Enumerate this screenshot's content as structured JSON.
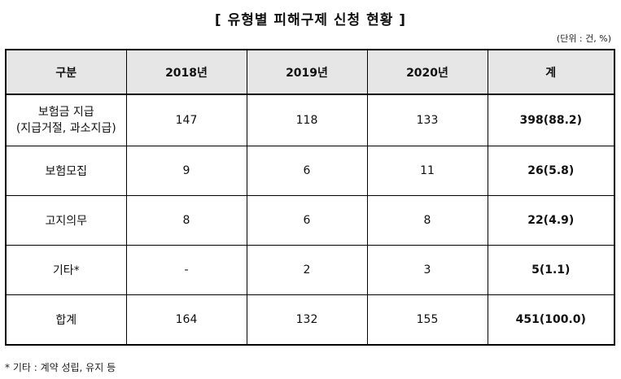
{
  "title": "[ 유형별 피해구제 신청 현황 ]",
  "unit_note": "(단위 : 건, %)",
  "table": {
    "headers": [
      "구분",
      "2018년",
      "2019년",
      "2020년",
      "계"
    ],
    "rows": [
      {
        "category": [
          "보험금 지급",
          "(지급거절, 과소지급)"
        ],
        "y2018": "147",
        "y2019": "118",
        "y2020": "133",
        "total": "398(88.2)"
      },
      {
        "category": [
          "보험모집"
        ],
        "y2018": "9",
        "y2019": "6",
        "y2020": "11",
        "total": "26(5.8)"
      },
      {
        "category": [
          "고지의무"
        ],
        "y2018": "8",
        "y2019": "6",
        "y2020": "8",
        "total": "22(4.9)"
      },
      {
        "category": [
          "기타*"
        ],
        "y2018": "-",
        "y2019": "2",
        "y2020": "3",
        "total": "5(1.1)"
      },
      {
        "category": [
          "합계"
        ],
        "y2018": "164",
        "y2019": "132",
        "y2020": "155",
        "total": "451(100.0)"
      }
    ]
  },
  "footnote": "* 기타 : 계약 성립, 유지 등"
}
